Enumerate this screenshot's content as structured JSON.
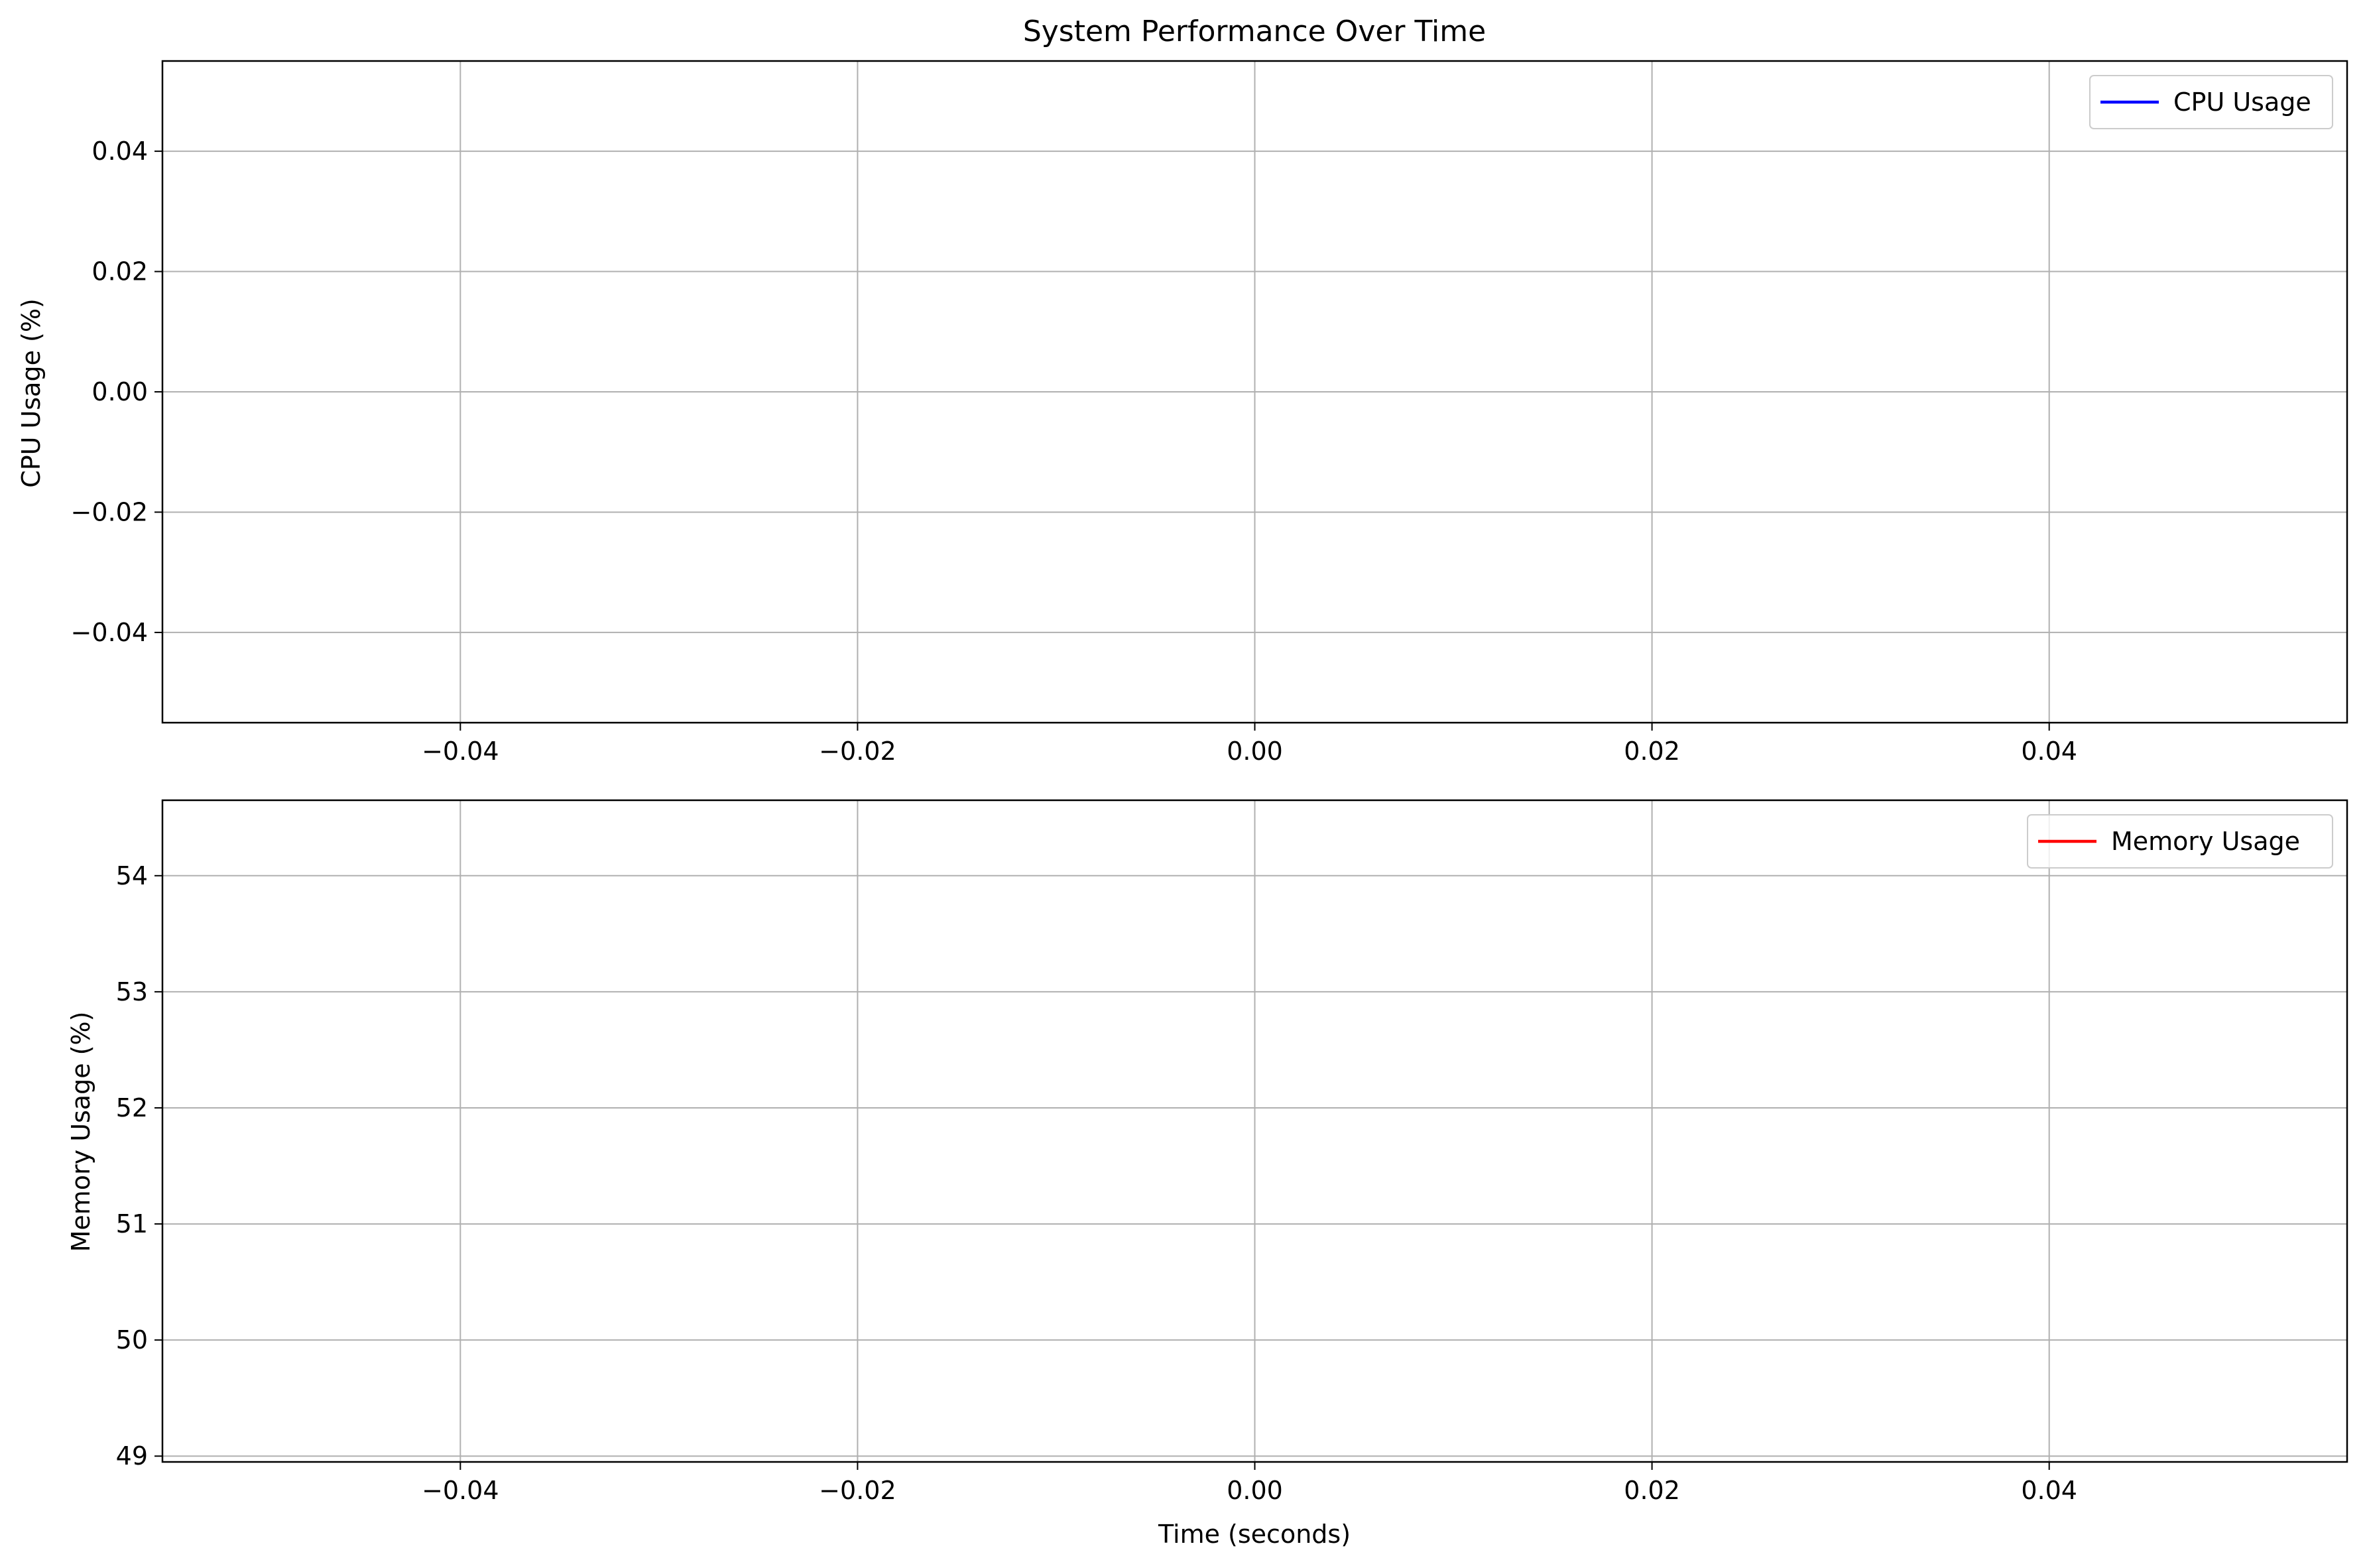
{
  "chart_data": [
    {
      "type": "line",
      "title": "System Performance Over Time",
      "xlabel": "",
      "ylabel": "CPU Usage (%)",
      "xlim": [
        -0.055,
        0.055
      ],
      "ylim": [
        -0.055,
        0.055
      ],
      "xticks": [
        -0.04,
        -0.02,
        0.0,
        0.02,
        0.04
      ],
      "xtick_labels": [
        "−0.04",
        "−0.02",
        "0.00",
        "0.02",
        "0.04"
      ],
      "yticks": [
        -0.04,
        -0.02,
        0.0,
        0.02,
        0.04
      ],
      "ytick_labels": [
        "−0.04",
        "−0.02",
        "0.00",
        "0.02",
        "0.04"
      ],
      "grid": true,
      "legend_position": "top-right",
      "series": [
        {
          "name": "CPU Usage",
          "color": "#0000ff",
          "x": [],
          "y": []
        }
      ]
    },
    {
      "type": "line",
      "title": "",
      "xlabel": "Time (seconds)",
      "ylabel": "Memory Usage (%)",
      "xlim": [
        -0.055,
        0.055
      ],
      "ylim": [
        48.95,
        54.65
      ],
      "xticks": [
        -0.04,
        -0.02,
        0.0,
        0.02,
        0.04
      ],
      "xtick_labels": [
        "−0.04",
        "−0.02",
        "0.00",
        "0.02",
        "0.04"
      ],
      "yticks": [
        49,
        50,
        51,
        52,
        53,
        54
      ],
      "ytick_labels": [
        "49",
        "50",
        "51",
        "52",
        "53",
        "54"
      ],
      "grid": true,
      "legend_position": "top-right",
      "series": [
        {
          "name": "Memory Usage",
          "color": "#ff0000",
          "x": [],
          "y": []
        }
      ]
    }
  ],
  "style": {
    "grid_color": "#b0b0b0",
    "axes_color": "#000000",
    "legend_border_color": "#cccccc"
  }
}
